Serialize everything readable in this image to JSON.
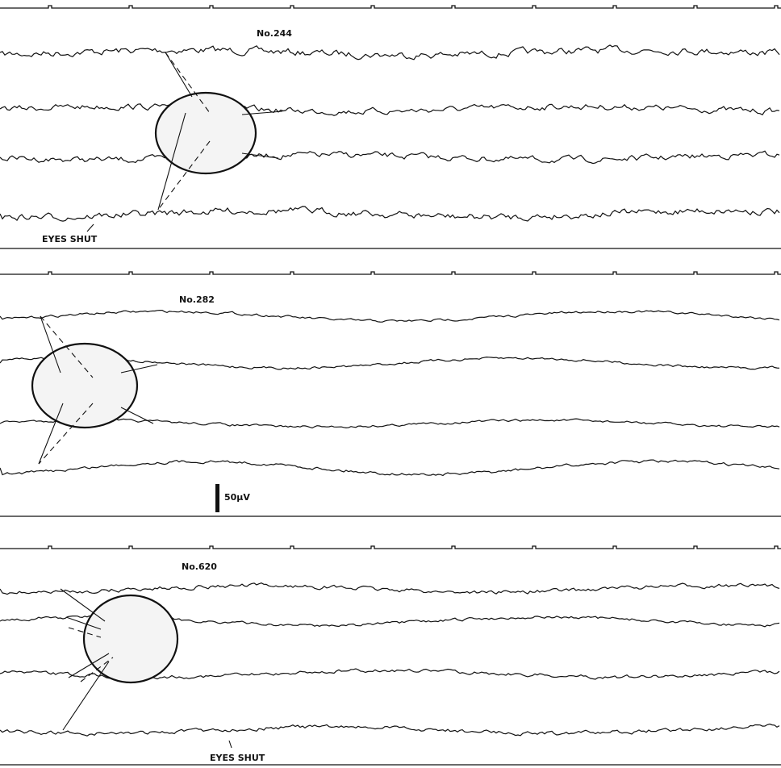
{
  "panels": [
    {
      "label": "No.244",
      "marker": "EYES SHUT"
    },
    {
      "label": "No.282"
    },
    {
      "label": "No.620",
      "marker": "EYES SHUT"
    }
  ],
  "scale_bar": "50μV"
}
